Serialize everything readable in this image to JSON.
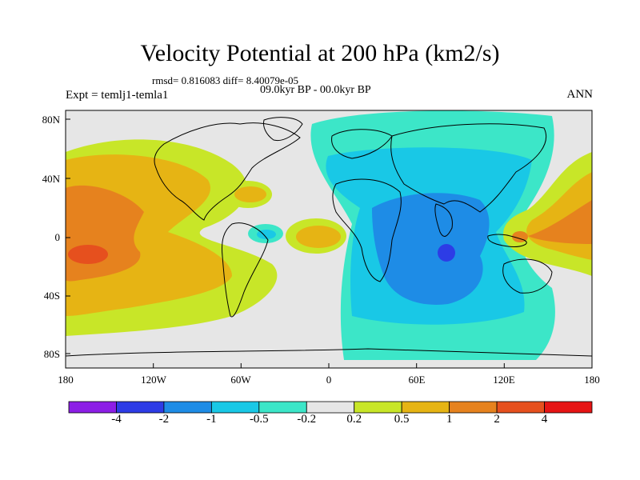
{
  "title": "Velocity Potential at 200 hPa (km2/s)",
  "stats": "rmsd= 0.816083 diff= 8.40079e-05",
  "experiment": "Expt = temlj1-temla1",
  "period": "09.0kyr BP - 00.0kyr BP",
  "season": "ANN",
  "x_ticks": [
    "180",
    "120W",
    "60W",
    "0",
    "60E",
    "120E",
    "180"
  ],
  "y_ticks": [
    "80N",
    "40N",
    "0",
    "40S",
    "80S"
  ],
  "colorbar": {
    "colors": [
      "#8c1ee6",
      "#2d3ce6",
      "#1e8ce6",
      "#19c8e6",
      "#3ce6c8",
      "#e6e6e6",
      "#c8e628",
      "#e6b414",
      "#e6821e",
      "#e6501e",
      "#e61414"
    ],
    "labels": [
      "-4",
      "-2",
      "-1",
      "-0.5",
      "-0.2",
      "0.2",
      "0.5",
      "1",
      "2",
      "4"
    ]
  }
}
